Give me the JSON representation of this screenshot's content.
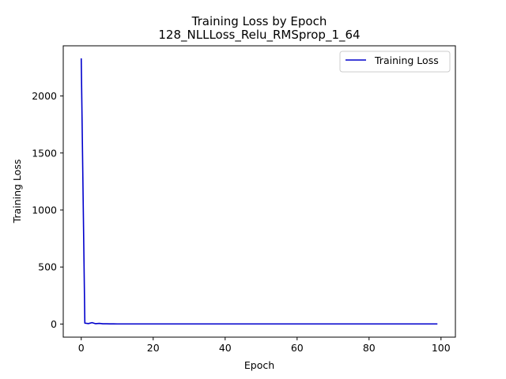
{
  "chart_data": {
    "type": "line",
    "title": "Training Loss by Epoch",
    "subtitle": "128_NLLLoss_Relu_RMSprop_1_64",
    "xlabel": "Epoch",
    "ylabel": "Training Loss",
    "xlim": [
      -5,
      104
    ],
    "ylim": [
      -115,
      2440
    ],
    "x_ticks": [
      0,
      20,
      40,
      60,
      80,
      100
    ],
    "y_ticks": [
      0,
      500,
      1000,
      1500,
      2000
    ],
    "grid": false,
    "legend_position": "top-right",
    "series": [
      {
        "name": "Training Loss",
        "color": "#0000cc",
        "x": [
          0,
          1,
          2,
          3,
          4,
          5,
          6,
          7,
          8,
          9,
          10,
          15,
          20,
          30,
          40,
          50,
          60,
          70,
          80,
          90,
          99
        ],
        "y": [
          2330,
          8,
          4,
          12,
          3,
          6,
          2,
          2,
          1.5,
          1.5,
          1,
          1,
          1,
          1,
          1,
          1,
          1,
          1,
          1,
          1,
          1
        ]
      }
    ]
  }
}
